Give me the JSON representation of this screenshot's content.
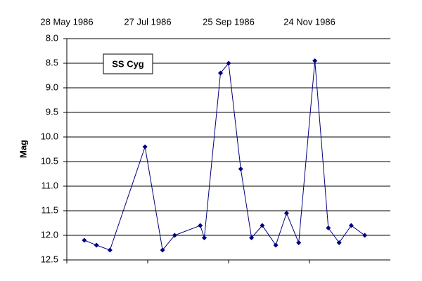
{
  "chart_data": {
    "type": "line",
    "annotation": "SS Cyg",
    "ylabel": "Mag",
    "x": [
      "1986-06-10",
      "1986-06-19",
      "1986-06-29",
      "1986-07-25",
      "1986-08-07",
      "1986-08-16",
      "1986-09-04",
      "1986-09-07",
      "1986-09-19",
      "1986-09-25",
      "1986-10-04",
      "1986-10-12",
      "1986-10-20",
      "1986-10-30",
      "1986-11-07",
      "1986-11-16",
      "1986-11-28",
      "1986-12-08",
      "1986-12-16",
      "1986-12-25",
      "1987-01-04"
    ],
    "series": [
      {
        "name": "SS Cyg",
        "color": "#000080",
        "values": [
          12.1,
          12.2,
          12.3,
          10.2,
          12.3,
          12.0,
          11.8,
          12.05,
          8.7,
          8.5,
          10.65,
          12.05,
          11.8,
          12.2,
          11.55,
          12.15,
          8.45,
          11.85,
          12.15,
          11.8,
          12.0
        ]
      }
    ],
    "xlim": [
      "1986-05-28",
      "1987-01-23"
    ],
    "xticks": [
      {
        "value": "1986-05-28",
        "label": "28 May 1986"
      },
      {
        "value": "1986-07-27",
        "label": "27 Jul 1986"
      },
      {
        "value": "1986-09-25",
        "label": "25 Sep 1986"
      },
      {
        "value": "1986-11-24",
        "label": "24 Nov 1986"
      }
    ],
    "ylim": [
      8,
      12.5
    ],
    "y_inverted": true,
    "yticks": [
      {
        "value": 8,
        "label": "8.0"
      },
      8.5,
      {
        "value": 9,
        "label": "9.0"
      },
      9.5,
      {
        "value": 10,
        "label": "10.0"
      },
      10.5,
      {
        "value": 11,
        "label": "11.0"
      },
      11.5,
      {
        "value": 12,
        "label": "12.0"
      },
      12.5
    ],
    "grid": true
  }
}
